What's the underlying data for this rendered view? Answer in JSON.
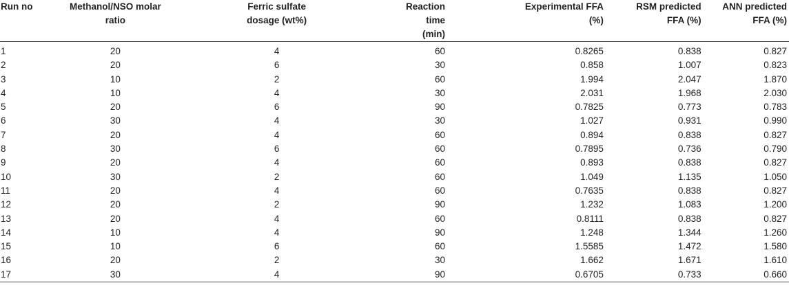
{
  "table": {
    "headers": [
      [
        "Run no",
        ""
      ],
      [
        "Methanol/NSO molar",
        "ratio"
      ],
      [
        "Ferric sulfate",
        "dosage (wt%)"
      ],
      [
        "Reaction time",
        "(min)"
      ],
      [
        "Experimental FFA",
        "(%)"
      ],
      [
        "RSM predicted",
        "FFA (%)"
      ],
      [
        "ANN predicted",
        "FFA (%)"
      ]
    ],
    "rows": [
      [
        "1",
        "20",
        "4",
        "60",
        "0.8265",
        "0.838",
        "0.827"
      ],
      [
        "2",
        "20",
        "6",
        "30",
        "0.858",
        "1.007",
        "0.823"
      ],
      [
        "3",
        "10",
        "2",
        "60",
        "1.994",
        "2.047",
        "1.870"
      ],
      [
        "4",
        "10",
        "4",
        "30",
        "2.031",
        "1.968",
        "2.030"
      ],
      [
        "5",
        "20",
        "6",
        "90",
        "0.7825",
        "0.773",
        "0.783"
      ],
      [
        "6",
        "30",
        "4",
        "30",
        "1.027",
        "0.931",
        "0.990"
      ],
      [
        "7",
        "20",
        "4",
        "60",
        "0.894",
        "0.838",
        "0.827"
      ],
      [
        "8",
        "30",
        "6",
        "60",
        "0.7895",
        "0.736",
        "0.790"
      ],
      [
        "9",
        "20",
        "4",
        "60",
        "0.893",
        "0.838",
        "0.827"
      ],
      [
        "10",
        "30",
        "2",
        "60",
        "1.049",
        "1.135",
        "1.050"
      ],
      [
        "11",
        "20",
        "4",
        "60",
        "0.7635",
        "0.838",
        "0.827"
      ],
      [
        "12",
        "20",
        "2",
        "90",
        "1.232",
        "1.083",
        "1.200"
      ],
      [
        "13",
        "20",
        "4",
        "60",
        "0.8111",
        "0.838",
        "0.827"
      ],
      [
        "14",
        "10",
        "4",
        "90",
        "1.248",
        "1.344",
        "1.260"
      ],
      [
        "15",
        "10",
        "6",
        "60",
        "1.5585",
        "1.472",
        "1.580"
      ],
      [
        "16",
        "20",
        "2",
        "30",
        "1.662",
        "1.671",
        "1.610"
      ],
      [
        "17",
        "30",
        "4",
        "90",
        "0.6705",
        "0.733",
        "0.660"
      ]
    ]
  }
}
